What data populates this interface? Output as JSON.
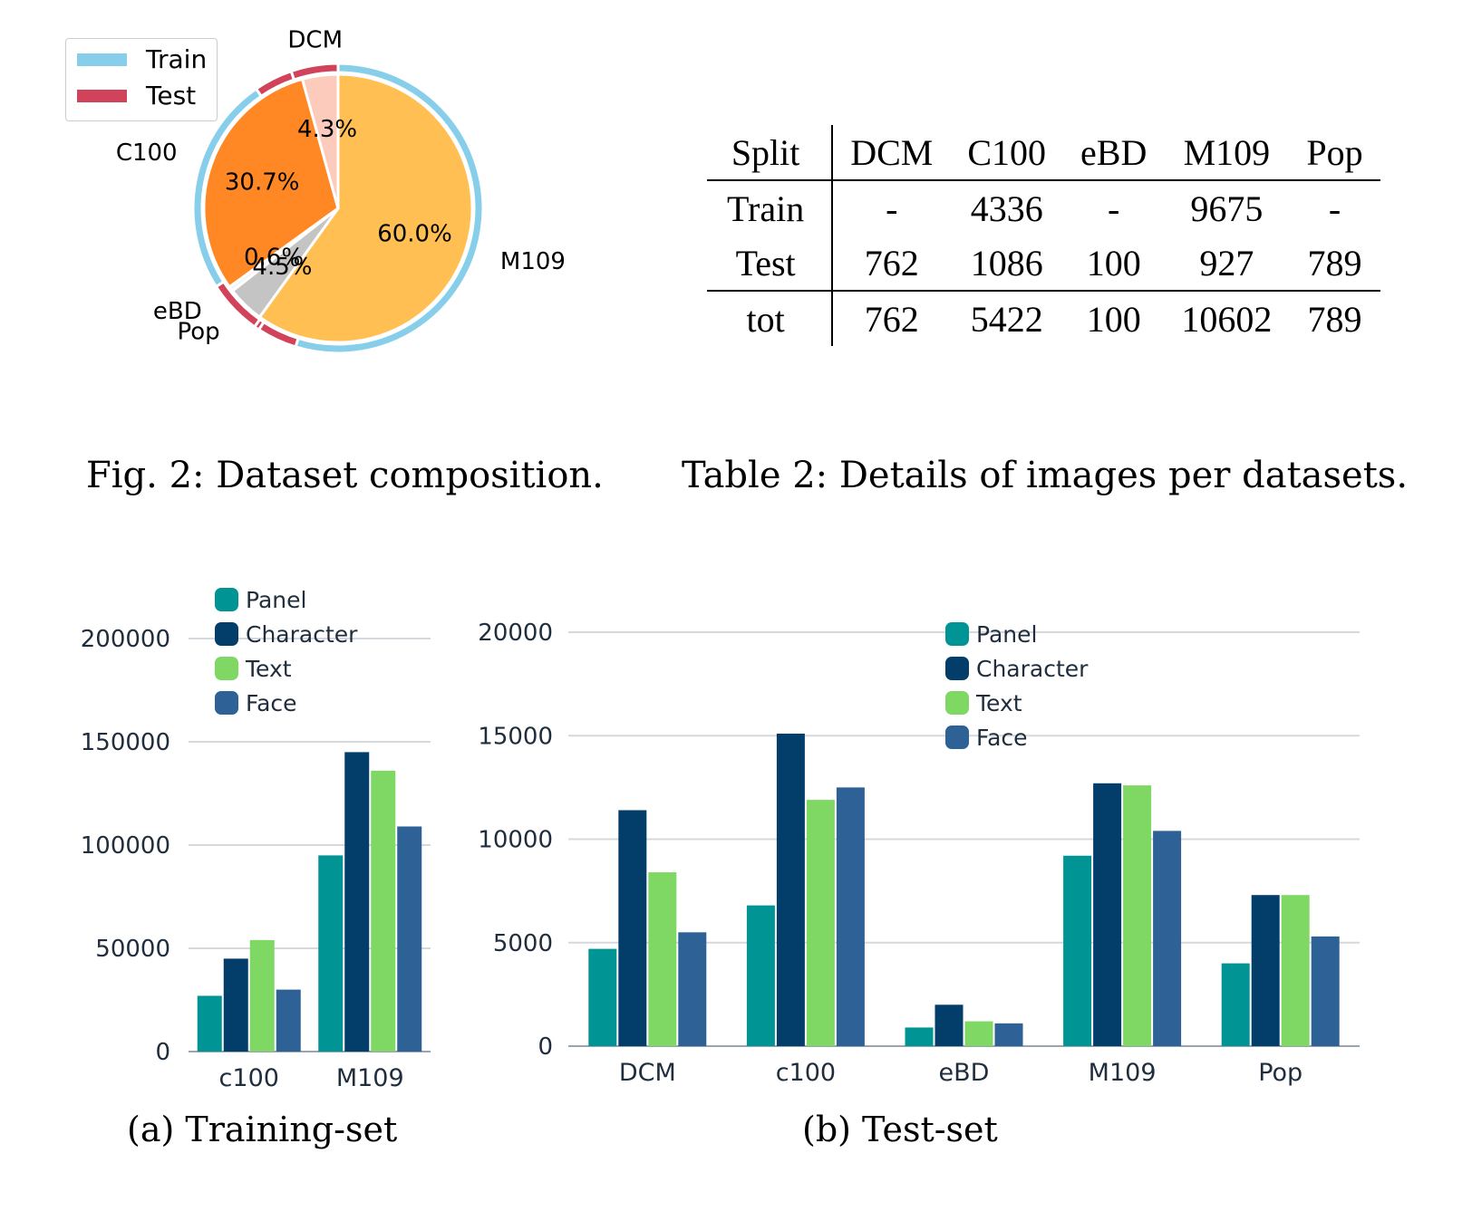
{
  "pie": {
    "legend": [
      {
        "label": "Train",
        "color": "#87ceeb"
      },
      {
        "label": "Test",
        "color": "#d1435b"
      }
    ],
    "caption": "Fig. 2: Dataset composition."
  },
  "table": {
    "caption": "Table 2: Details of images per datasets.",
    "headers": [
      "Split",
      "DCM",
      "C100",
      "eBD",
      "M109",
      "Pop"
    ],
    "rows": [
      [
        "Train",
        "-",
        "4336",
        "-",
        "9675",
        "-"
      ],
      [
        "Test",
        "762",
        "1086",
        "100",
        "927",
        "789"
      ],
      [
        "tot",
        "762",
        "5422",
        "100",
        "10602",
        "789"
      ]
    ]
  },
  "captions": {
    "train": "(a) Training-set",
    "test": "(b) Test-set"
  },
  "chart_data": [
    {
      "type": "pie",
      "slices": [
        {
          "label": "M109",
          "value": 60.0,
          "pct_label": "60.0%",
          "color": "#ffbf52"
        },
        {
          "label": "Pop",
          "value": 4.5,
          "pct_label": "4.5%",
          "color": "#c4c4c4"
        },
        {
          "label": "eBD",
          "value": 0.6,
          "pct_label": "0.6%",
          "color": "#f3f3f3"
        },
        {
          "label": "C100",
          "value": 30.7,
          "pct_label": "30.7%",
          "color": "#ff8825"
        },
        {
          "label": "DCM",
          "value": 4.3,
          "pct_label": "4.3%",
          "color": "#fccbbb"
        }
      ],
      "outer_ring": [
        {
          "value": 9675,
          "split": "Train"
        },
        {
          "value": 789,
          "split": "Test"
        },
        {
          "value": 100,
          "split": "Test"
        },
        {
          "value": 1086,
          "split": "Test"
        },
        {
          "value": 4336,
          "split": "Train"
        },
        {
          "value": 762,
          "split": "Test"
        },
        {
          "value": 927,
          "split": "Test"
        }
      ]
    },
    {
      "type": "bar",
      "categories": [
        "c100",
        "M109"
      ],
      "series": [
        {
          "name": "Panel",
          "color": "#009494",
          "values": [
            27000,
            95000
          ]
        },
        {
          "name": "Character",
          "color": "#033e6b",
          "values": [
            45000,
            145000
          ]
        },
        {
          "name": "Text",
          "color": "#80d864",
          "values": [
            54000,
            136000
          ]
        },
        {
          "name": "Face",
          "color": "#2e6196",
          "values": [
            30000,
            109000
          ]
        }
      ],
      "yticks": [
        0,
        50000,
        100000,
        150000,
        200000
      ],
      "ylim": [
        0,
        200000
      ]
    },
    {
      "type": "bar",
      "categories": [
        "DCM",
        "c100",
        "eBD",
        "M109",
        "Pop"
      ],
      "series": [
        {
          "name": "Panel",
          "color": "#009494",
          "values": [
            4700,
            6800,
            900,
            9200,
            4000
          ]
        },
        {
          "name": "Character",
          "color": "#033e6b",
          "values": [
            11400,
            15100,
            2000,
            12700,
            7300
          ]
        },
        {
          "name": "Text",
          "color": "#80d864",
          "values": [
            8400,
            11900,
            1200,
            12600,
            7300
          ]
        },
        {
          "name": "Face",
          "color": "#2e6196",
          "values": [
            5500,
            12500,
            1100,
            10400,
            5300
          ]
        }
      ],
      "yticks": [
        0,
        5000,
        10000,
        15000,
        20000
      ],
      "ylim": [
        0,
        20000
      ]
    }
  ]
}
